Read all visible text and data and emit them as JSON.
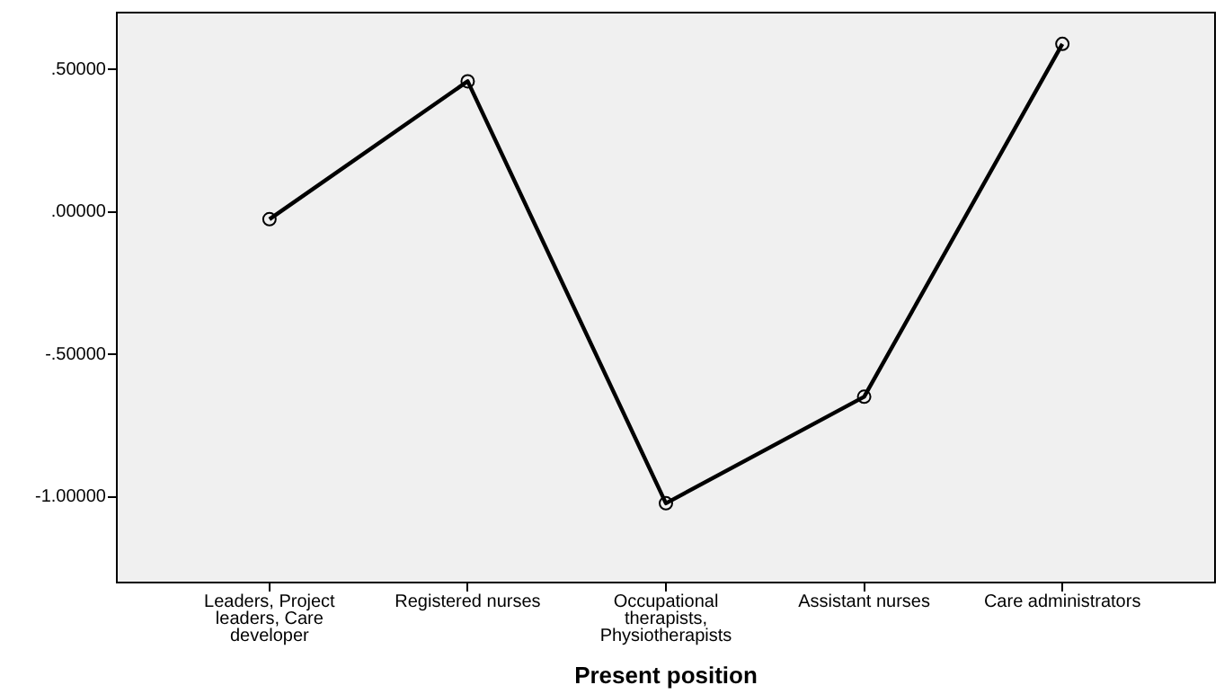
{
  "chart_data": {
    "type": "line",
    "xlabel": "Present position",
    "categories": [
      "Leaders, Project leaders, Care developer",
      "Registered nurses",
      "Occupational therapists, Physiotherapists",
      "Assistant nurses",
      "Care administrators"
    ],
    "series": [
      {
        "color": "#000000",
        "values": [
          -0.025,
          0.459,
          -1.022,
          -0.648,
          0.59
        ]
      }
    ],
    "ylim": [
      -1.3,
      0.7
    ],
    "yticks": [
      {
        "value": 0.5,
        "label": ".50000"
      },
      {
        "value": 0,
        "label": ".00000"
      },
      {
        "value": -0.5,
        "label": "-.50000"
      },
      {
        "value": -1,
        "label": "-1.00000"
      }
    ],
    "grid": false,
    "legend": false,
    "marker": "circle",
    "line_style": "solid"
  }
}
